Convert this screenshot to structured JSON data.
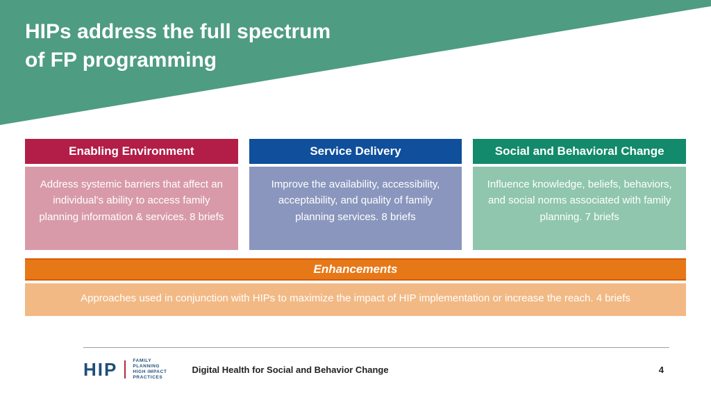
{
  "colors": {
    "header_bg": "#4e9c81",
    "card1_head": "#b21e47",
    "card1_body": "#d89aa9",
    "card2_head": "#0f4f9c",
    "card2_body": "#8a96bd",
    "card3_head": "#128a6b",
    "card3_body": "#8fc6ad",
    "enh_head": "#e77817",
    "enh_body": "#f2b985",
    "footer_rule": "#9aa0a6",
    "logo_blue": "#1f4e79",
    "logo_rule": "#b02a3a"
  },
  "title_line1": "HIPs address the full spectrum",
  "title_line2": "of FP programming",
  "cards": [
    {
      "head": "Enabling Environment",
      "body": "Address systemic barriers that affect an individual's ability to access family planning information & services. 8 briefs"
    },
    {
      "head": "Service Delivery",
      "body": "Improve the availability, accessibility, acceptability, and quality of family planning services. 8 briefs"
    },
    {
      "head": "Social and Behavioral Change",
      "body": "Influence knowledge, beliefs, behaviors, and social norms associated with family planning. 7 briefs"
    }
  ],
  "enhancements": {
    "head": "Enhancements",
    "body": "Approaches used in conjunction with HIPs to maximize the impact of HIP implementation or increase the reach. 4 briefs"
  },
  "footer": {
    "logo_main": "HIP",
    "logo_sub_1": "FAMILY",
    "logo_sub_2": "PLANNING",
    "logo_sub_3": "HIGH IMPACT",
    "logo_sub_4": "PRACTICES",
    "title": "Digital Health for Social and Behavior Change",
    "page": "4"
  },
  "typography": {
    "title_fontsize": 30,
    "card_head_fontsize": 17,
    "card_body_fontsize": 15,
    "footer_fontsize": 13
  }
}
